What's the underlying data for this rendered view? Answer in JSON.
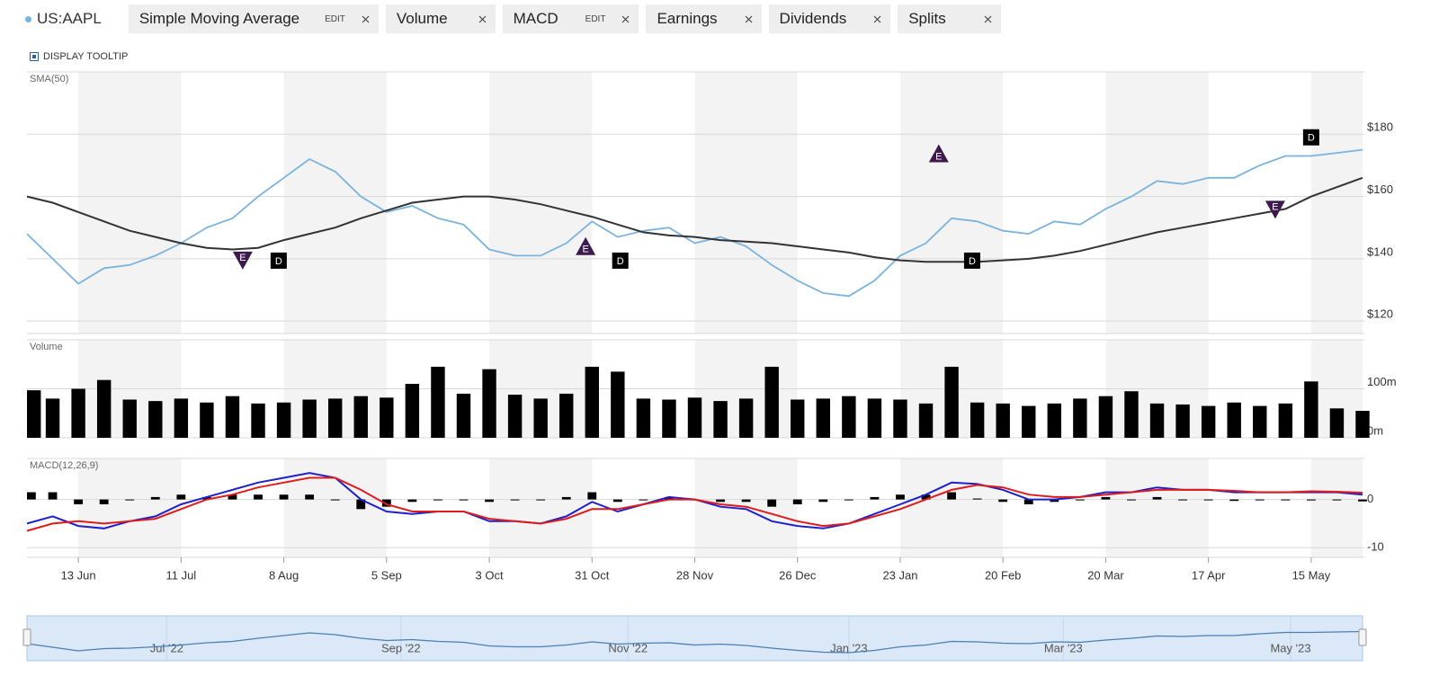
{
  "toolbar": {
    "tooltip_toggle": "DISPLAY TOOLTIP",
    "edit": "EDIT",
    "splits": "Splits"
  },
  "chart_data": [
    {
      "type": "line",
      "title": "SMA(50)",
      "x": [
        0,
        1,
        2,
        3,
        4,
        5,
        6,
        7,
        8,
        9,
        10,
        11,
        12,
        13,
        14,
        15,
        16,
        17,
        18,
        19,
        20,
        21,
        22,
        23,
        24,
        25,
        26,
        27,
        28,
        29,
        30,
        31,
        32,
        33,
        34,
        35,
        36,
        37,
        38,
        39,
        40,
        41,
        42,
        43,
        44,
        45,
        46,
        47,
        48,
        49,
        50,
        51,
        52
      ],
      "xlim": [
        0,
        52
      ],
      "ylim": [
        116,
        200
      ],
      "yticks": [
        {
          "value": 120,
          "label": "$120"
        },
        {
          "value": 140,
          "label": "$140"
        },
        {
          "value": 160,
          "label": "$160"
        },
        {
          "value": 180,
          "label": "$180"
        }
      ],
      "grid": true,
      "series": [
        {
          "name": "US:AAPL",
          "color": "#7ab3de",
          "values": [
            148,
            140,
            132,
            137,
            138,
            141,
            145,
            150,
            153,
            160,
            166,
            172,
            168,
            160,
            155,
            157,
            153,
            151,
            143,
            141,
            141,
            145,
            152,
            147,
            149,
            150,
            145,
            147,
            144,
            138,
            133,
            129,
            128,
            133,
            141,
            145,
            153,
            152,
            149,
            148,
            152,
            151,
            156,
            160,
            165,
            164,
            166,
            166,
            170,
            173,
            173,
            174,
            175
          ]
        },
        {
          "name": "Simple Moving Average",
          "color": "#333333",
          "values": [
            160,
            158,
            155,
            152,
            149,
            147,
            145,
            143.5,
            143,
            143.5,
            146,
            148,
            150,
            153,
            155.5,
            158,
            159,
            160,
            160,
            159,
            157.5,
            155.5,
            153.5,
            151,
            148.5,
            147.5,
            147,
            146,
            145.5,
            145,
            144,
            143,
            142,
            140.5,
            139.5,
            139,
            139,
            139,
            139.5,
            140,
            141,
            142.5,
            144.5,
            146.5,
            148.5,
            150,
            151.5,
            153,
            154.5,
            156,
            160,
            163,
            166
          ]
        }
      ],
      "events": [
        {
          "name": "Earnings",
          "label": "E",
          "color": "#3d1a4d",
          "points": [
            {
              "x": 8.4,
              "y": 139.7,
              "direction": "down"
            },
            {
              "x": 21.75,
              "y": 143.8,
              "direction": "up"
            },
            {
              "x": 35.5,
              "y": 173.6,
              "direction": "up"
            },
            {
              "x": 48.6,
              "y": 156,
              "direction": "down"
            }
          ]
        },
        {
          "name": "Dividends",
          "label": "D",
          "color": "#000000",
          "points": [
            {
              "x": 9.8,
              "y": 139.4
            },
            {
              "x": 23.1,
              "y": 139.4
            },
            {
              "x": 36.8,
              "y": 139.4
            },
            {
              "x": 50,
              "y": 179
            }
          ]
        }
      ]
    },
    {
      "type": "bar",
      "title": "Volume",
      "x": [
        0,
        1,
        2,
        3,
        4,
        5,
        6,
        7,
        8,
        9,
        10,
        11,
        12,
        13,
        14,
        15,
        16,
        17,
        18,
        19,
        20,
        21,
        22,
        23,
        24,
        25,
        26,
        27,
        28,
        29,
        30,
        31,
        32,
        33,
        34,
        35,
        36,
        37,
        38,
        39,
        40,
        41,
        42,
        43,
        44,
        45,
        46,
        47,
        48,
        49,
        50,
        51,
        52
      ],
      "xlim": [
        0,
        52
      ],
      "ylim": [
        0,
        200
      ],
      "yticks": [
        {
          "value": 0,
          "label": "0m"
        },
        {
          "value": 100,
          "label": "100m"
        }
      ],
      "grid": true,
      "color": "#000000",
      "values": [
        97,
        80,
        100,
        118,
        78,
        75,
        80,
        72,
        85,
        70,
        72,
        78,
        80,
        85,
        82,
        110,
        145,
        90,
        140,
        88,
        80,
        90,
        145,
        135,
        80,
        78,
        82,
        75,
        80,
        145,
        78,
        80,
        85,
        80,
        78,
        70,
        145,
        72,
        70,
        65,
        70,
        80,
        85,
        95,
        70,
        68,
        65,
        72,
        65,
        70,
        115,
        60,
        55
      ]
    },
    {
      "type": "macd",
      "title": "MACD(12,26,9)",
      "x": [
        0,
        1,
        2,
        3,
        4,
        5,
        6,
        7,
        8,
        9,
        10,
        11,
        12,
        13,
        14,
        15,
        16,
        17,
        18,
        19,
        20,
        21,
        22,
        23,
        24,
        25,
        26,
        27,
        28,
        29,
        30,
        31,
        32,
        33,
        34,
        35,
        36,
        37,
        38,
        39,
        40,
        41,
        42,
        43,
        44,
        45,
        46,
        47,
        48,
        49,
        50,
        51,
        52
      ],
      "xlim": [
        0,
        52
      ],
      "ylim": [
        -12,
        8.5
      ],
      "yticks": [
        0,
        -10
      ],
      "grid": true,
      "xticks": [
        {
          "value": 2,
          "label": "13 Jun"
        },
        {
          "value": 6,
          "label": "11 Jul"
        },
        {
          "value": 10,
          "label": "8 Aug"
        },
        {
          "value": 14,
          "label": "5 Sep"
        },
        {
          "value": 18,
          "label": "3 Oct"
        },
        {
          "value": 22,
          "label": "31 Oct"
        },
        {
          "value": 26,
          "label": "28 Nov"
        },
        {
          "value": 30,
          "label": "26 Dec"
        },
        {
          "value": 34,
          "label": "23 Jan"
        },
        {
          "value": 38,
          "label": "20 Feb"
        },
        {
          "value": 42,
          "label": "20 Mar"
        },
        {
          "value": 46,
          "label": "17 Apr"
        },
        {
          "value": 50,
          "label": "15 May"
        }
      ],
      "series": [
        {
          "name": "MACD",
          "color": "#1f1fcc",
          "values": [
            -5,
            -3.5,
            -5.5,
            -6,
            -4.5,
            -3.5,
            -1,
            0.5,
            2,
            3.5,
            4.5,
            5.5,
            4.5,
            0,
            -2.5,
            -3,
            -2.5,
            -2.5,
            -4.5,
            -4.5,
            -5,
            -3.5,
            -0.5,
            -2.5,
            -1,
            0.5,
            0,
            -1.5,
            -2,
            -4.5,
            -5.5,
            -6,
            -5,
            -3,
            -1,
            1,
            3.5,
            3.2,
            2,
            0,
            0,
            0.5,
            1.5,
            1.5,
            2.5,
            2,
            2,
            1.5,
            1.5,
            1.5,
            1.5,
            1.5,
            1
          ]
        },
        {
          "color": "#e01b1b",
          "values": [
            -6.5,
            -5,
            -4.5,
            -5,
            -4.5,
            -4,
            -2,
            0,
            1,
            2.5,
            3.5,
            4.5,
            4.5,
            2,
            -1,
            -2.5,
            -2.5,
            -2.5,
            -4,
            -4.5,
            -5,
            -4,
            -2,
            -2,
            -1,
            0,
            0,
            -1,
            -1.5,
            -3,
            -4.5,
            -5.5,
            -5,
            -3.5,
            -2,
            0,
            2,
            3,
            2.5,
            1,
            0.5,
            0.5,
            1,
            1.5,
            2,
            2,
            2,
            1.8,
            1.5,
            1.5,
            1.7,
            1.6,
            1.4
          ]
        }
      ],
      "histogram": {
        "color": "#000000",
        "values": [
          1.5,
          1.5,
          -1,
          -1,
          0,
          0.5,
          1,
          0.5,
          1,
          1,
          1,
          1,
          0,
          -2,
          -1.5,
          -0.5,
          0,
          0,
          -0.5,
          0,
          0,
          0.5,
          1.5,
          -0.5,
          0,
          0.5,
          0,
          -0.5,
          -0.5,
          -1.5,
          -1,
          -0.5,
          0,
          0.5,
          1,
          1,
          1.5,
          0.2,
          -0.5,
          -1,
          -0.5,
          0,
          0.5,
          0,
          0.5,
          0,
          0,
          -0.3,
          0,
          0,
          -0.2,
          -0.1,
          -0.4
        ]
      }
    },
    {
      "type": "navigator",
      "xlim": [
        0,
        52
      ],
      "color": "#4a7fb5",
      "xticks": [
        {
          "value": 5.44,
          "label": "Jul '22"
        },
        {
          "value": 14.56,
          "label": "Sep '22"
        },
        {
          "value": 23.4,
          "label": "Nov '22"
        },
        {
          "value": 32,
          "label": "Jan '23"
        },
        {
          "value": 40.35,
          "label": "Mar '23"
        },
        {
          "value": 49.2,
          "label": "May '23"
        }
      ]
    }
  ]
}
